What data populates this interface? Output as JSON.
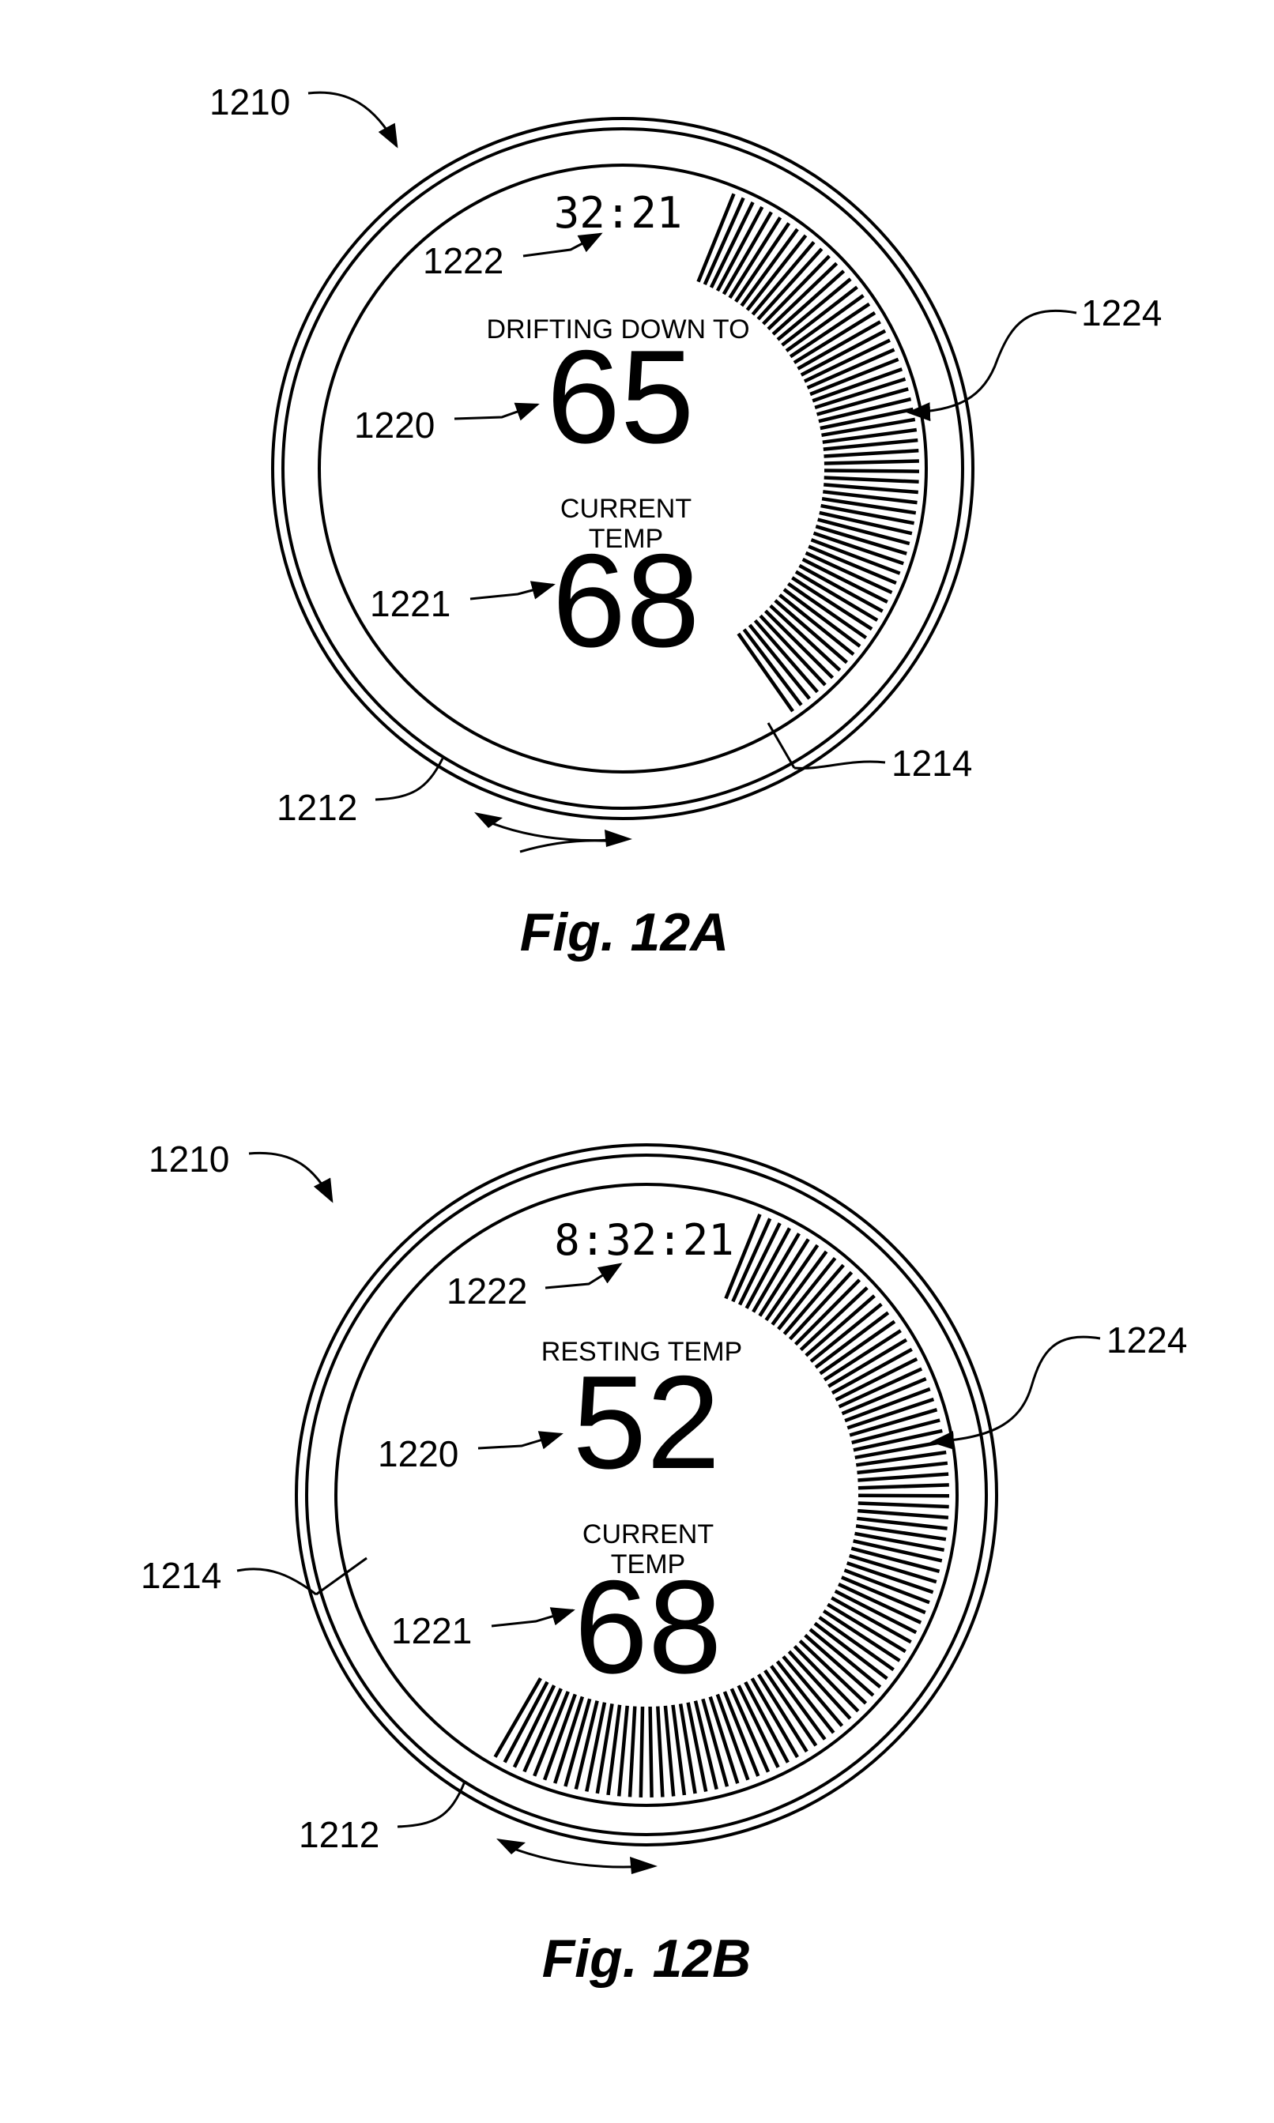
{
  "figures": [
    {
      "id": "a",
      "label": "Fig. 12A",
      "time": "32:21",
      "status_label": "DRIFTING DOWN TO",
      "target_temp": "65",
      "current_label_line1": "CURRENT",
      "current_label_line2": "TEMP",
      "current_temp": "68",
      "refs": {
        "device": "1210",
        "ring": "1212",
        "indicator": "1214",
        "target": "1220",
        "current": "1221",
        "time": "1222",
        "ticks": "1224"
      }
    },
    {
      "id": "b",
      "label": "Fig. 12B",
      "time": "8:32:21",
      "status_label": "RESTING TEMP",
      "target_temp": "52",
      "current_label_line1": "CURRENT",
      "current_label_line2": "TEMP",
      "current_temp": "68",
      "refs": {
        "device": "1210",
        "ring": "1212",
        "indicator": "1214",
        "target": "1220",
        "current": "1221",
        "time": "1222",
        "ticks": "1224"
      }
    }
  ]
}
